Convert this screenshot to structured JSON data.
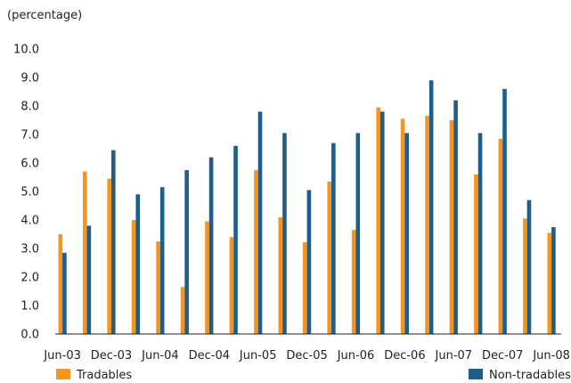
{
  "chart_data": {
    "type": "bar",
    "ylabel": "(percentage)",
    "ylim": [
      0,
      10
    ],
    "yticks": [
      "0.0",
      "1.0",
      "2.0",
      "3.0",
      "4.0",
      "5.0",
      "6.0",
      "7.0",
      "8.0",
      "9.0",
      "10.0"
    ],
    "x_tick_labels": [
      "Jun-03",
      "Dec-03",
      "Jun-04",
      "Dec-04",
      "Jun-05",
      "Dec-05",
      "Jun-06",
      "Dec-06",
      "Jun-07",
      "Dec-07",
      "Jun-08"
    ],
    "categories": [
      "Jun-03",
      "Sep-03",
      "Dec-03",
      "Mar-04",
      "Jun-04",
      "Sep-04",
      "Dec-04",
      "Mar-05",
      "Jun-05",
      "Sep-05",
      "Dec-05",
      "Mar-06",
      "Jun-06",
      "Sep-06",
      "Dec-06",
      "Mar-07",
      "Jun-07",
      "Sep-07",
      "Dec-07",
      "Mar-08",
      "Jun-08"
    ],
    "series": [
      {
        "name": "Tradables",
        "color": "#f7941d",
        "values": [
          3.5,
          5.7,
          5.45,
          4.0,
          3.25,
          1.65,
          3.95,
          3.4,
          5.75,
          4.1,
          3.22,
          5.35,
          3.65,
          7.95,
          7.55,
          7.65,
          7.5,
          5.6,
          6.85,
          4.05,
          3.55
        ]
      },
      {
        "name": "Non-tradables",
        "color": "#1c5e8c",
        "values": [
          2.85,
          3.8,
          6.45,
          4.9,
          5.15,
          5.75,
          6.2,
          6.6,
          7.8,
          7.05,
          5.05,
          6.7,
          7.05,
          7.8,
          7.05,
          8.9,
          8.2,
          7.05,
          8.6,
          4.7,
          3.75
        ]
      }
    ],
    "legend": "bottom"
  }
}
